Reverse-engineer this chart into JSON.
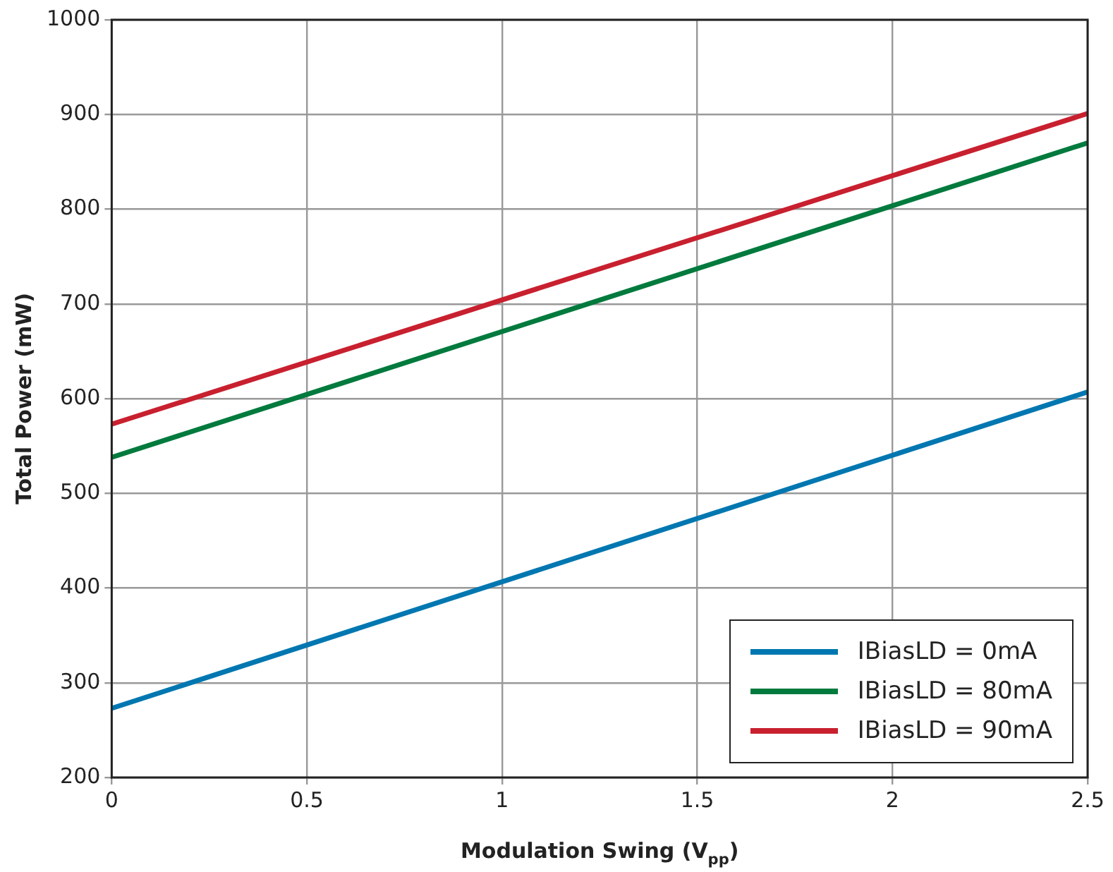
{
  "chart_data": {
    "type": "line",
    "xlabel": "Modulation Swing (V$_{pp}$)",
    "ylabel": "Total Power (mW)",
    "x": [
      0,
      2.5
    ],
    "series": [
      {
        "name": "IBiasLD = 0mA",
        "color": "#0077b0",
        "values": [
          273,
          607
        ]
      },
      {
        "name": "IBiasLD = 80mA",
        "color": "#007a3d",
        "values": [
          538,
          870
        ]
      },
      {
        "name": "IBiasLD = 90mA",
        "color": "#c8202f",
        "values": [
          573,
          901
        ]
      }
    ],
    "xlim": [
      0,
      2.5
    ],
    "xticks": [
      0,
      0.5,
      1,
      1.5,
      2,
      2.5
    ],
    "ylim": [
      200,
      1000
    ],
    "yticks": [
      200,
      300,
      400,
      500,
      600,
      700,
      800,
      900,
      1000
    ],
    "grid": true,
    "legend": "bottom right",
    "marker": "none",
    "line_style": "solid"
  }
}
